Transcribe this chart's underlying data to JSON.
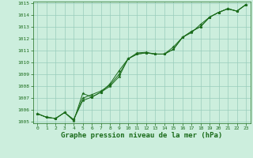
{
  "x": [
    0,
    1,
    2,
    3,
    4,
    5,
    6,
    7,
    8,
    9,
    10,
    11,
    12,
    13,
    14,
    15,
    16,
    17,
    18,
    19,
    20,
    21,
    22,
    23
  ],
  "series1": [
    1005.7,
    1005.4,
    1005.3,
    1005.8,
    1005.2,
    1007.0,
    1007.3,
    1007.6,
    1008.1,
    1009.0,
    1010.3,
    1010.7,
    1010.8,
    1010.7,
    1010.7,
    1011.1,
    1012.1,
    1012.6,
    1013.0,
    1013.8,
    1014.2,
    1014.5,
    1014.3,
    1014.85
  ],
  "series2": [
    1005.7,
    1005.4,
    1005.3,
    1005.8,
    1005.2,
    1006.8,
    1007.1,
    1007.5,
    1008.0,
    1008.8,
    1010.3,
    1010.7,
    1010.8,
    1010.7,
    1010.7,
    1011.1,
    1012.1,
    1012.6,
    1013.0,
    1013.8,
    1014.2,
    1014.5,
    1014.3,
    1014.85
  ],
  "series3": [
    1005.7,
    1005.4,
    1005.3,
    1005.8,
    1005.1,
    1007.4,
    1007.1,
    1007.5,
    1008.2,
    1009.3,
    1010.3,
    1010.8,
    1010.85,
    1010.7,
    1010.7,
    1011.3,
    1012.1,
    1012.5,
    1013.2,
    1013.8,
    1014.2,
    1014.5,
    1014.3,
    1014.85
  ],
  "line_color": "#1a6b1a",
  "marker": "*",
  "bg_color": "#cceedd",
  "grid_color": "#99ccbb",
  "xlabel": "Graphe pression niveau de la mer (hPa)",
  "ylim": [
    1005,
    1015
  ],
  "yticks": [
    1005,
    1006,
    1007,
    1008,
    1009,
    1010,
    1011,
    1012,
    1013,
    1014,
    1015
  ],
  "xlim": [
    -0.5,
    23.5
  ],
  "xticks": [
    0,
    1,
    2,
    3,
    4,
    5,
    6,
    7,
    8,
    9,
    10,
    11,
    12,
    13,
    14,
    15,
    16,
    17,
    18,
    19,
    20,
    21,
    22,
    23
  ]
}
